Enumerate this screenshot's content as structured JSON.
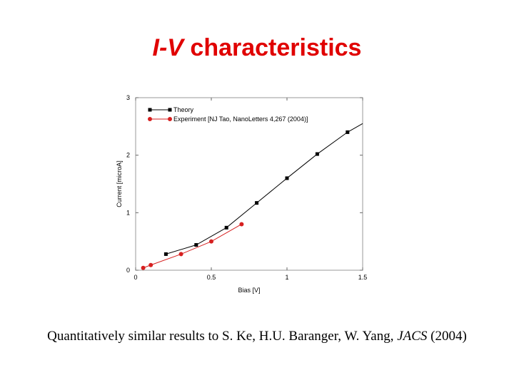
{
  "slide": {
    "title_italic": "I-V",
    "title_rest": " characteristics",
    "caption_pre": "Quantitatively similar results to S. Ke, H.U. Baranger, W. Yang, ",
    "caption_italic": "JACS",
    "caption_post": " (2004)"
  },
  "colors": {
    "title": "#e00000",
    "theory": "#000000",
    "experiment": "#d62020",
    "frame": "#999999"
  },
  "chart_data": {
    "type": "line",
    "xlabel": "Bias [V]",
    "ylabel": "Current [microA]",
    "xlim": [
      0,
      1.5
    ],
    "ylim": [
      0,
      3
    ],
    "x_ticks": [
      0,
      0.5,
      1,
      1.5
    ],
    "x_tick_labels": [
      "0",
      "0.5",
      "1",
      "1.5"
    ],
    "y_ticks": [
      0,
      1,
      2,
      3
    ],
    "y_tick_labels": [
      "0",
      "1",
      "2",
      "3"
    ],
    "grid": false,
    "legend": "top-left",
    "series": [
      {
        "name": "Theory",
        "marker": "square",
        "color": "#000000",
        "x": [
          0.2,
          0.4,
          0.6,
          0.8,
          1.0,
          1.2,
          1.4,
          1.5
        ],
        "y": [
          0.28,
          0.44,
          0.74,
          1.17,
          1.6,
          2.02,
          2.4,
          2.55
        ],
        "marker_indices": [
          0,
          1,
          2,
          3,
          4,
          5,
          6
        ]
      },
      {
        "name": "Experiment [NJ Tao, NanoLetters 4,267 (2004)]",
        "marker": "circle",
        "color": "#d62020",
        "x": [
          0.05,
          0.1,
          0.3,
          0.5,
          0.7
        ],
        "y": [
          0.04,
          0.09,
          0.28,
          0.5,
          0.8
        ],
        "marker_indices": [
          0,
          1,
          2,
          3,
          4
        ]
      }
    ]
  }
}
